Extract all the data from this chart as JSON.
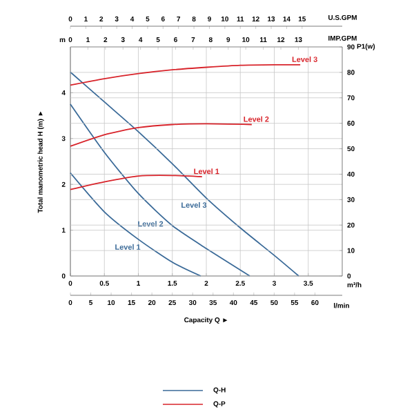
{
  "chart_data": [
    {
      "type": "line",
      "xlabel": "Capacity Q ►",
      "ylabel": "Total manometric head H (m) ►",
      "x2label": "IMP.GPM",
      "xlim": [
        0,
        4
      ],
      "xticks": [
        0,
        0.5,
        1,
        1.5,
        2,
        2.5,
        3,
        3.5
      ],
      "x2lim": [
        0,
        15.5
      ],
      "x2ticks": [
        0,
        1,
        2,
        3,
        4,
        5,
        6,
        7,
        8,
        9,
        10,
        11,
        12,
        13
      ],
      "ylim": [
        0,
        5
      ],
      "yticks": [
        0,
        1,
        2,
        3,
        4
      ],
      "grid": true,
      "marker": "none",
      "line_style": "solid",
      "annotations": [
        "m",
        "m³/h",
        "Q-H"
      ],
      "series": [
        {
          "name": "Level 1",
          "color": "#3a6a98",
          "x": [
            0,
            0.5,
            1,
            1.5,
            1.92
          ],
          "values": [
            2.25,
            1.4,
            0.8,
            0.3,
            0
          ]
        },
        {
          "name": "Level 2",
          "color": "#3a6a98",
          "x": [
            0,
            0.5,
            1,
            1.5,
            2,
            2.64
          ],
          "values": [
            3.75,
            2.7,
            1.8,
            1.1,
            0.6,
            0
          ]
        },
        {
          "name": "Level 3",
          "color": "#3a6a98",
          "x": [
            0,
            0.5,
            1,
            1.5,
            2,
            2.5,
            3,
            3.36
          ],
          "values": [
            4.45,
            3.8,
            3.15,
            2.45,
            1.7,
            1.05,
            0.45,
            0
          ]
        }
      ]
    },
    {
      "type": "line",
      "xlabel": "l/min",
      "x2label": "U.S.GPM",
      "y2label": "P1(w)",
      "xlim": [
        0,
        66.7
      ],
      "xticks": [
        0,
        5,
        10,
        15,
        20,
        25,
        30,
        35,
        40,
        45,
        50,
        55,
        60
      ],
      "x2lim": [
        0,
        17.6
      ],
      "x2ticks": [
        0,
        1,
        2,
        3,
        4,
        5,
        6,
        7,
        8,
        9,
        10,
        11,
        12,
        13,
        14,
        15
      ],
      "y2lim": [
        0,
        90
      ],
      "y2ticks": [
        0,
        10,
        20,
        30,
        40,
        50,
        60,
        70,
        80,
        90
      ],
      "grid": "y",
      "marker": "none",
      "line_style": "solid",
      "annotations": [
        "Q-P"
      ],
      "series": [
        {
          "name": "Level 1",
          "color": "#d8232a",
          "axis": "y2",
          "x": [
            0,
            8.3,
            16.7,
            25,
            32.3
          ],
          "values": [
            34,
            37,
            39.3,
            39.5,
            39
          ]
        },
        {
          "name": "Level 2",
          "color": "#d8232a",
          "axis": "y2",
          "x": [
            0,
            8.3,
            16.7,
            25,
            33.4,
            44.5
          ],
          "values": [
            51,
            55.5,
            58.3,
            59.5,
            59.8,
            59.5
          ]
        },
        {
          "name": "Level 3",
          "color": "#d8232a",
          "axis": "y2",
          "x": [
            0,
            8.3,
            16.7,
            25,
            33.4,
            41.7,
            50,
            56.4
          ],
          "values": [
            75,
            77.5,
            79.5,
            81,
            82,
            82.8,
            83,
            83
          ]
        }
      ]
    }
  ]
}
